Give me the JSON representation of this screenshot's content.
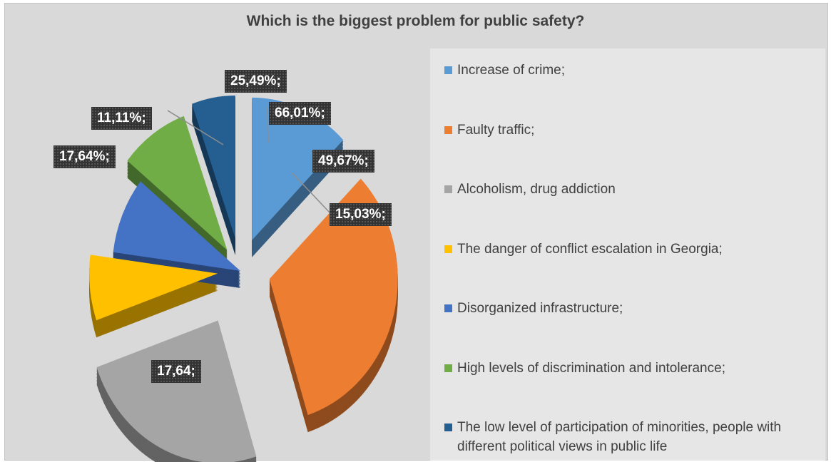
{
  "chart_data": {
    "type": "pie",
    "title": "Which is the biggest problem for public safety?",
    "legend_position": "right",
    "categories": [
      "Increase of crime;",
      "Faulty traffic;",
      "Alcoholism, drug addiction",
      "The danger of conflict escalation in Georgia;",
      "Disorganized infrastructure;",
      "High levels of discrimination and intolerance;",
      "The low level of participation of minorities, people with different political views in public life"
    ],
    "labels": [
      "25,49%;",
      "66,01%;",
      "49,67%;",
      "15,03%;",
      "17,64;",
      "17,64%;",
      "11,11%;"
    ],
    "values": [
      25.49,
      66.01,
      49.67,
      15.03,
      17.64,
      17.64,
      11.11
    ],
    "colors": [
      "#5b9bd5",
      "#ed7d31",
      "#a5a5a5",
      "#ffc000",
      "#4472c4",
      "#70ad47",
      "#255e91"
    ]
  }
}
